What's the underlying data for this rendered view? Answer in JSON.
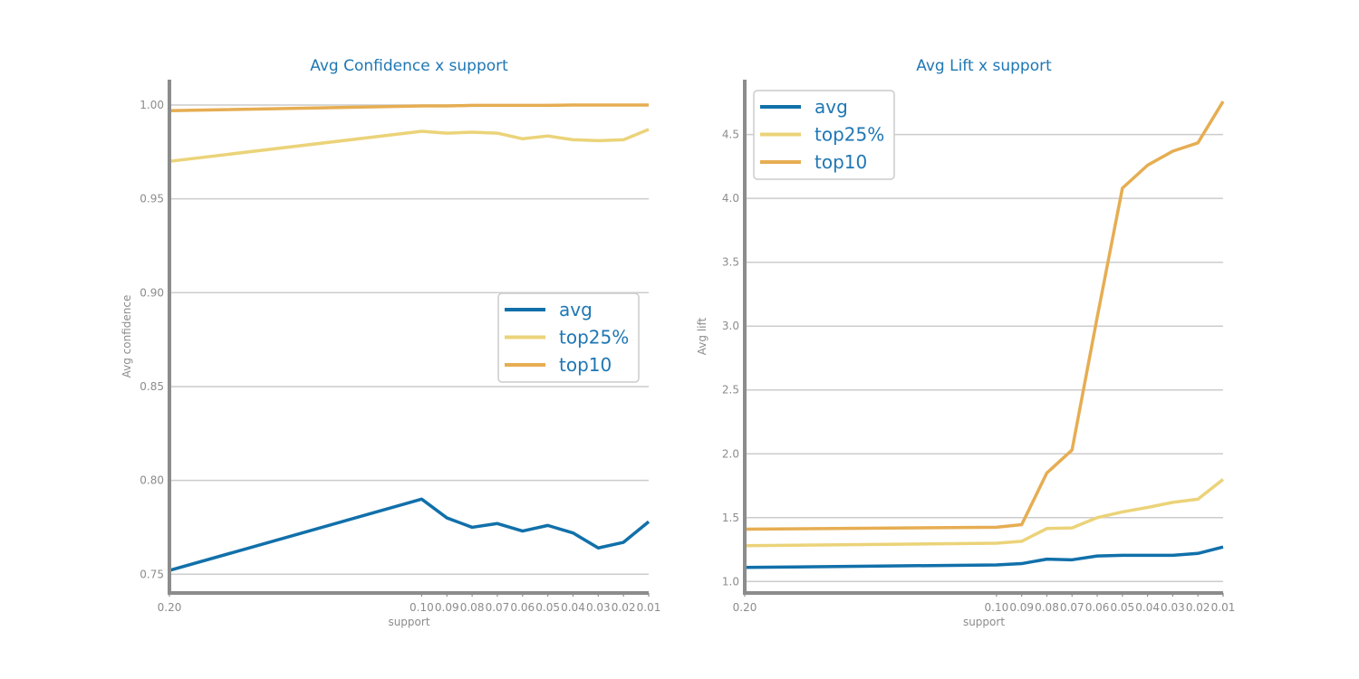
{
  "colors": {
    "avg": "#1170aa",
    "top25%": "#ebd379",
    "top10": "#e6ad52",
    "text_blue": "#1f77b4",
    "axis_gray": "#8c8c8c"
  },
  "chart_data": [
    {
      "type": "line",
      "title": "Avg Confidence x support",
      "xlabel": "support",
      "ylabel": "Avg confidence",
      "x": [
        0.2,
        0.1,
        0.09,
        0.08,
        0.07,
        0.06,
        0.05,
        0.04,
        0.03,
        0.02,
        0.01
      ],
      "x_tick_labels": [
        "0.20",
        "0.10",
        "0.09",
        "0.08",
        "0.07",
        "0.06",
        "0.05",
        "0.04",
        "0.03",
        "0.02",
        "0.01"
      ],
      "xlim": [
        0.2,
        0.01
      ],
      "ylim": [
        0.74,
        1.0135
      ],
      "yticks": [
        0.75,
        0.8,
        0.85,
        0.9,
        0.95,
        1.0
      ],
      "ytick_labels": [
        "0.75",
        "0.80",
        "0.85",
        "0.90",
        "0.95",
        "1.00"
      ],
      "grid": "horizontal",
      "legend_position": "center-right",
      "series": [
        {
          "name": "avg",
          "color": "#1170aa",
          "values": [
            0.752,
            0.79,
            0.78,
            0.775,
            0.777,
            0.773,
            0.776,
            0.772,
            0.764,
            0.767,
            0.778
          ]
        },
        {
          "name": "top25%",
          "color": "#ebd379",
          "values": [
            0.97,
            0.986,
            0.985,
            0.9855,
            0.985,
            0.982,
            0.9835,
            0.9815,
            0.981,
            0.9815,
            0.987
          ]
        },
        {
          "name": "top10",
          "color": "#e6ad52",
          "values": [
            0.997,
            0.9995,
            0.9995,
            0.9998,
            0.9998,
            0.9998,
            0.9998,
            1.0,
            1.0,
            1.0,
            1.0
          ]
        }
      ]
    },
    {
      "type": "line",
      "title": "Avg Lift x support",
      "xlabel": "support",
      "ylabel": "Avg lift",
      "x": [
        0.2,
        0.1,
        0.09,
        0.08,
        0.07,
        0.06,
        0.05,
        0.04,
        0.03,
        0.02,
        0.01
      ],
      "x_tick_labels": [
        "0.20",
        "0.10",
        "0.09",
        "0.08",
        "0.07",
        "0.06",
        "0.05",
        "0.04",
        "0.03",
        "0.02",
        "0.01"
      ],
      "xlim": [
        0.2,
        0.01
      ],
      "ylim": [
        0.91,
        4.93
      ],
      "yticks": [
        1.0,
        1.5,
        2.0,
        2.5,
        3.0,
        3.5,
        4.0,
        4.5
      ],
      "ytick_labels": [
        "1.0",
        "1.5",
        "2.0",
        "2.5",
        "3.0",
        "3.5",
        "4.0",
        "4.5"
      ],
      "grid": "horizontal",
      "legend_position": "top-left",
      "series": [
        {
          "name": "avg",
          "color": "#1170aa",
          "values": [
            1.11,
            1.13,
            1.14,
            1.175,
            1.17,
            1.2,
            1.205,
            1.205,
            1.205,
            1.22,
            1.27
          ]
        },
        {
          "name": "top25%",
          "color": "#ebd379",
          "values": [
            1.28,
            1.3,
            1.315,
            1.415,
            1.42,
            1.5,
            1.545,
            1.58,
            1.62,
            1.645,
            1.8
          ]
        },
        {
          "name": "top10",
          "color": "#e6ad52",
          "values": [
            1.41,
            1.425,
            1.445,
            1.85,
            2.03,
            3.07,
            4.08,
            4.26,
            4.37,
            4.435,
            4.76
          ]
        }
      ]
    }
  ]
}
